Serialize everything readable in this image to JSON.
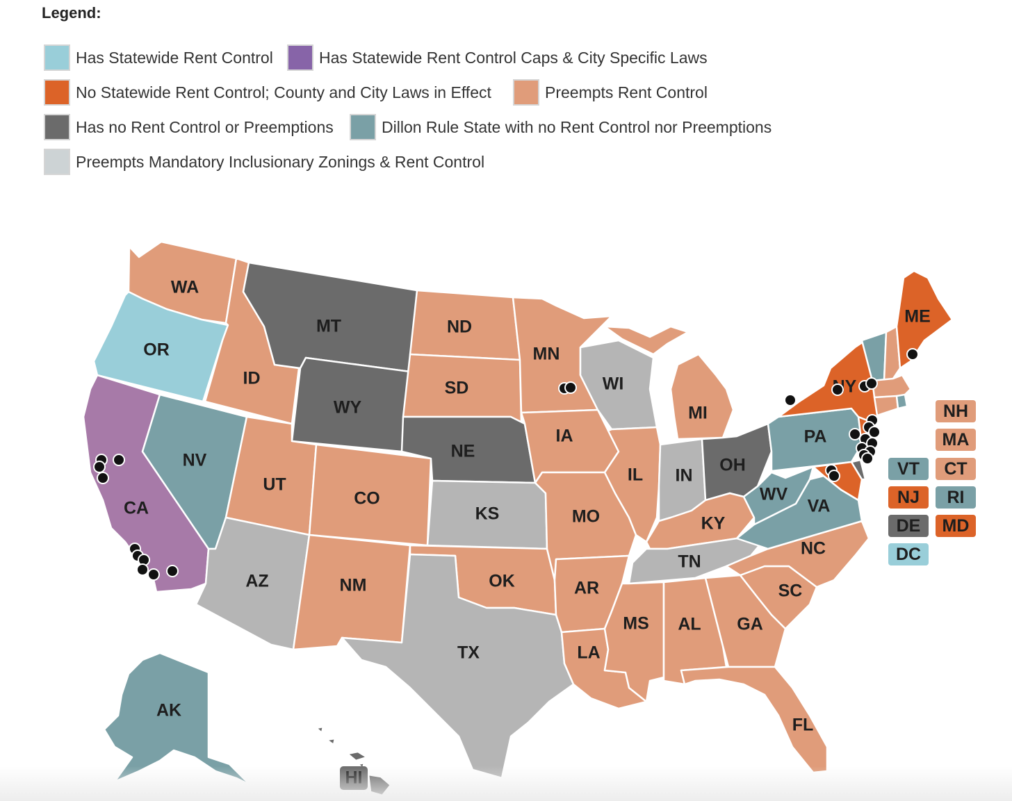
{
  "legend": {
    "title": "Legend:",
    "items": [
      {
        "label": "Has Statewide Rent Control",
        "color": "#99ced9"
      },
      {
        "label": "Has Statewide Rent Control Caps & City Specific Laws",
        "color": "#8764a8"
      },
      {
        "label": "No Statewide Rent Control; County and City Laws in Effect",
        "color": "#dc6328"
      },
      {
        "label": "Preempts Rent Control",
        "color": "#e09c7a"
      },
      {
        "label": "Has no Rent Control or Preemptions",
        "color": "#6b6b6b"
      },
      {
        "label": "Dillon Rule State with no Rent Control nor Preemptions",
        "color": "#7aa0a6"
      },
      {
        "label": "Preempts Mandatory Inclusionary Zonings & Rent Control",
        "color": "#cdd3d5"
      }
    ]
  },
  "map_colors": {
    "statewide": "#99ced9",
    "caps_city": "#a77aa8",
    "local": "#dc6328",
    "preempts": "#e09c7a",
    "none": "#6b6b6b",
    "dillon": "#7aa0a6",
    "preempts_miz": "#b5b5b5"
  },
  "states": {
    "WA": "WA",
    "OR": "OR",
    "CA": "CA",
    "ID": "ID",
    "NV": "NV",
    "MT": "MT",
    "WY": "WY",
    "UT": "UT",
    "AZ": "AZ",
    "CO": "CO",
    "NM": "NM",
    "ND": "ND",
    "SD": "SD",
    "NE": "NE",
    "KS": "KS",
    "OK": "OK",
    "TX": "TX",
    "MN": "MN",
    "IA": "IA",
    "MO": "MO",
    "AR": "AR",
    "LA": "LA",
    "WI": "WI",
    "IL": "IL",
    "MI": "MI",
    "IN": "IN",
    "OH": "OH",
    "KY": "KY",
    "TN": "TN",
    "MS": "MS",
    "AL": "AL",
    "GA": "GA",
    "FL": "FL",
    "SC": "SC",
    "NC": "NC",
    "VA": "VA",
    "WV": "WV",
    "PA": "PA",
    "NY": "NY",
    "ME": "ME",
    "AK": "AK",
    "HI": "HI"
  },
  "small_states": {
    "NH": "NH",
    "MA": "MA",
    "VT": "VT",
    "CT": "CT",
    "NJ": "NJ",
    "RI": "RI",
    "DE": "DE",
    "MD": "MD",
    "DC": "DC"
  }
}
